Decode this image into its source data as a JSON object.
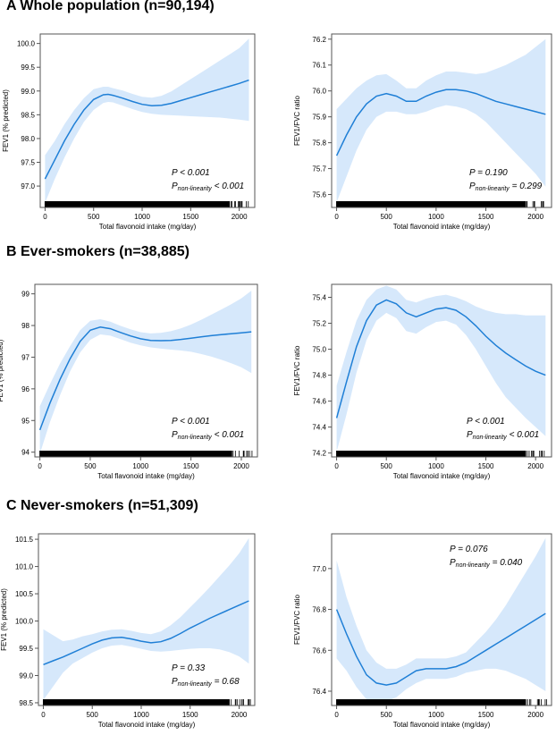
{
  "sections": [
    {
      "title": "A Whole population (n=90,194)"
    },
    {
      "title": "B Ever-smokers (n=38,885)"
    },
    {
      "title": "C Never-smokers (n=51,309)"
    }
  ],
  "colors": {
    "line": "#1f7fd6",
    "band": "#d6e8fb",
    "rug": "#000000"
  },
  "chart_data": [
    {
      "type": "line",
      "panel": "A-left",
      "title": "",
      "xlabel": "Total flavonoid intake (mg/day)",
      "ylabel": "FEV1 (% predicted)",
      "xlim": [
        -50,
        2160
      ],
      "ylim": [
        96.55,
        100.2
      ],
      "xticks": [
        0,
        500,
        1000,
        1500,
        2000
      ],
      "yticks": [
        97.0,
        97.5,
        98.0,
        98.5,
        99.0,
        99.5,
        100.0
      ],
      "ytick_decimals": 1,
      "x": [
        0,
        100,
        200,
        300,
        400,
        500,
        600,
        650,
        700,
        800,
        900,
        1000,
        1100,
        1200,
        1300,
        1400,
        1500,
        1600,
        1700,
        1800,
        1900,
        2000,
        2100
      ],
      "y": [
        97.15,
        97.55,
        97.95,
        98.3,
        98.6,
        98.82,
        98.92,
        98.93,
        98.91,
        98.85,
        98.78,
        98.72,
        98.69,
        98.7,
        98.74,
        98.8,
        98.86,
        98.92,
        98.98,
        99.04,
        99.1,
        99.16,
        99.23
      ],
      "lower": [
        96.65,
        97.15,
        97.6,
        98.0,
        98.35,
        98.6,
        98.75,
        98.77,
        98.76,
        98.69,
        98.62,
        98.56,
        98.52,
        98.5,
        98.49,
        98.48,
        98.47,
        98.46,
        98.45,
        98.44,
        98.42,
        98.4,
        98.37
      ],
      "upper": [
        97.65,
        97.95,
        98.3,
        98.6,
        98.85,
        99.04,
        99.09,
        99.09,
        99.06,
        99.01,
        98.94,
        98.88,
        98.86,
        98.9,
        98.99,
        99.12,
        99.25,
        99.38,
        99.51,
        99.64,
        99.77,
        99.9,
        100.1
      ],
      "stats": {
        "p": "P < 0.001",
        "p_nl_sub": "non-linearity",
        "p_nl_rest": " < 0.001"
      }
    },
    {
      "type": "line",
      "panel": "A-right",
      "title": "",
      "xlabel": "Total flavonoid intake (mg/day)",
      "ylabel": "FEV1/FVC ratio",
      "xlim": [
        -50,
        2160
      ],
      "ylim": [
        75.55,
        76.22
      ],
      "xticks": [
        0,
        500,
        1000,
        1500,
        2000
      ],
      "yticks": [
        75.6,
        75.7,
        75.8,
        75.9,
        76.0,
        76.1,
        76.2
      ],
      "ytick_decimals": 1,
      "x": [
        0,
        100,
        200,
        300,
        400,
        500,
        600,
        700,
        800,
        900,
        1000,
        1100,
        1200,
        1300,
        1400,
        1500,
        1600,
        1700,
        1800,
        1900,
        2000,
        2100
      ],
      "y": [
        75.75,
        75.83,
        75.9,
        75.95,
        75.98,
        75.99,
        75.98,
        75.96,
        75.96,
        75.98,
        75.995,
        76.005,
        76.005,
        76.0,
        75.99,
        75.975,
        75.96,
        75.95,
        75.94,
        75.93,
        75.92,
        75.91
      ],
      "lower": [
        75.57,
        75.67,
        75.77,
        75.85,
        75.9,
        75.92,
        75.92,
        75.91,
        75.91,
        75.92,
        75.935,
        75.945,
        75.94,
        75.93,
        75.91,
        75.88,
        75.84,
        75.8,
        75.76,
        75.72,
        75.68,
        75.63
      ],
      "upper": [
        75.93,
        75.97,
        76.01,
        76.04,
        76.06,
        76.065,
        76.04,
        76.01,
        76.01,
        76.04,
        76.06,
        76.075,
        76.075,
        76.07,
        76.065,
        76.07,
        76.085,
        76.1,
        76.12,
        76.14,
        76.17,
        76.2
      ],
      "stats": {
        "p": "P = 0.190",
        "p_nl_sub": "non-linearity",
        "p_nl_rest": " = 0.299"
      }
    },
    {
      "type": "line",
      "panel": "B-left",
      "title": "",
      "xlabel": "Total flavonoid intake (mg/day)",
      "ylabel": "FEV1 (% predicted)",
      "xlim": [
        -50,
        2160
      ],
      "ylim": [
        93.85,
        99.3
      ],
      "xticks": [
        0,
        500,
        1000,
        1500,
        2000
      ],
      "yticks": [
        94,
        95,
        96,
        97,
        98,
        99
      ],
      "ytick_decimals": 0,
      "x": [
        0,
        100,
        200,
        300,
        400,
        500,
        600,
        700,
        800,
        900,
        1000,
        1100,
        1200,
        1300,
        1400,
        1500,
        1600,
        1700,
        1800,
        1900,
        2000,
        2100
      ],
      "y": [
        94.7,
        95.55,
        96.3,
        96.95,
        97.5,
        97.85,
        97.95,
        97.9,
        97.78,
        97.67,
        97.58,
        97.53,
        97.52,
        97.53,
        97.56,
        97.6,
        97.64,
        97.68,
        97.71,
        97.74,
        97.77,
        97.8
      ],
      "lower": [
        93.95,
        94.95,
        95.8,
        96.55,
        97.15,
        97.55,
        97.72,
        97.68,
        97.57,
        97.46,
        97.37,
        97.31,
        97.27,
        97.24,
        97.21,
        97.17,
        97.1,
        97.02,
        96.92,
        96.81,
        96.68,
        96.5
      ],
      "upper": [
        95.45,
        96.15,
        96.8,
        97.35,
        97.85,
        98.15,
        98.2,
        98.12,
        97.99,
        97.88,
        97.79,
        97.75,
        97.77,
        97.82,
        97.91,
        98.03,
        98.18,
        98.34,
        98.5,
        98.67,
        98.86,
        99.1
      ],
      "stats": {
        "p": "P < 0.001",
        "p_nl_sub": "non-linearity",
        "p_nl_rest": " < 0.001"
      }
    },
    {
      "type": "line",
      "panel": "B-right",
      "title": "",
      "xlabel": "Total flavonoid intake (mg/day)",
      "ylabel": "FEV1/FVC ratio",
      "xlim": [
        -50,
        2160
      ],
      "ylim": [
        74.17,
        75.5
      ],
      "xticks": [
        0,
        500,
        1000,
        1500,
        2000
      ],
      "yticks": [
        74.2,
        74.4,
        74.6,
        74.8,
        75.0,
        75.2,
        75.4
      ],
      "ytick_decimals": 1,
      "x": [
        0,
        100,
        200,
        300,
        400,
        500,
        600,
        700,
        800,
        900,
        1000,
        1100,
        1200,
        1300,
        1400,
        1500,
        1600,
        1700,
        1800,
        1900,
        2000,
        2100
      ],
      "y": [
        74.47,
        74.75,
        75.02,
        75.22,
        75.34,
        75.38,
        75.35,
        75.28,
        75.25,
        75.28,
        75.31,
        75.32,
        75.3,
        75.25,
        75.18,
        75.1,
        75.03,
        74.97,
        74.92,
        74.87,
        74.83,
        74.8
      ],
      "lower": [
        74.21,
        74.5,
        74.82,
        75.07,
        75.22,
        75.28,
        75.24,
        75.14,
        75.12,
        75.17,
        75.21,
        75.22,
        75.19,
        75.11,
        75.0,
        74.87,
        74.74,
        74.63,
        74.55,
        74.47,
        74.4,
        74.33
      ],
      "upper": [
        74.72,
        74.98,
        75.22,
        75.38,
        75.46,
        75.49,
        75.46,
        75.38,
        75.36,
        75.39,
        75.41,
        75.42,
        75.4,
        75.37,
        75.33,
        75.3,
        75.28,
        75.27,
        75.27,
        75.26,
        75.26,
        75.26
      ],
      "stats": {
        "p": "P < 0.001",
        "p_nl_sub": "non-linearity",
        "p_nl_rest": " < 0.001"
      }
    },
    {
      "type": "line",
      "panel": "C-left",
      "title": "",
      "xlabel": "Total flavonoid intake (mg/day)",
      "ylabel": "FEV1 (% predicted)",
      "xlim": [
        -50,
        2160
      ],
      "ylim": [
        98.45,
        101.6
      ],
      "xticks": [
        0,
        500,
        1000,
        1500,
        2000
      ],
      "yticks": [
        98.5,
        99.0,
        99.5,
        100.0,
        100.5,
        101.0,
        101.5
      ],
      "ytick_decimals": 1,
      "x": [
        0,
        100,
        200,
        300,
        400,
        500,
        600,
        700,
        800,
        900,
        1000,
        1100,
        1200,
        1300,
        1400,
        1500,
        1600,
        1700,
        1800,
        1900,
        2000,
        2100
      ],
      "y": [
        99.2,
        99.27,
        99.34,
        99.42,
        99.5,
        99.58,
        99.65,
        99.69,
        99.7,
        99.67,
        99.63,
        99.6,
        99.62,
        99.68,
        99.77,
        99.87,
        99.96,
        100.05,
        100.13,
        100.21,
        100.29,
        100.37
      ],
      "lower": [
        98.55,
        98.8,
        99.05,
        99.22,
        99.32,
        99.42,
        99.5,
        99.55,
        99.56,
        99.53,
        99.49,
        99.45,
        99.44,
        99.45,
        99.47,
        99.49,
        99.5,
        99.5,
        99.48,
        99.43,
        99.35,
        99.22
      ],
      "upper": [
        99.85,
        99.74,
        99.63,
        99.66,
        99.72,
        99.76,
        99.81,
        99.84,
        99.85,
        99.82,
        99.78,
        99.76,
        99.81,
        99.92,
        100.07,
        100.25,
        100.43,
        100.62,
        100.82,
        101.02,
        101.24,
        101.52
      ],
      "stats": {
        "p": "P = 0.33",
        "p_nl_sub": "non-linearity",
        "p_nl_rest": " = 0.68"
      }
    },
    {
      "type": "line",
      "panel": "C-right",
      "title": "",
      "xlabel": "Total flavonoid intake (mg/day)",
      "ylabel": "FEV1/FVC ratio",
      "xlim": [
        -50,
        2160
      ],
      "ylim": [
        76.33,
        77.17
      ],
      "xticks": [
        0,
        500,
        1000,
        1500,
        2000
      ],
      "yticks": [
        76.4,
        76.6,
        76.8,
        77.0
      ],
      "ytick_decimals": 1,
      "x": [
        0,
        100,
        200,
        300,
        400,
        500,
        600,
        700,
        800,
        900,
        1000,
        1100,
        1200,
        1300,
        1400,
        1500,
        1600,
        1700,
        1800,
        1900,
        2000,
        2100
      ],
      "y": [
        76.8,
        76.68,
        76.57,
        76.48,
        76.44,
        76.43,
        76.44,
        76.47,
        76.5,
        76.51,
        76.51,
        76.51,
        76.52,
        76.54,
        76.57,
        76.6,
        76.63,
        76.66,
        76.69,
        76.72,
        76.75,
        76.78
      ],
      "lower": [
        76.56,
        76.5,
        76.42,
        76.36,
        76.34,
        76.35,
        76.37,
        76.41,
        76.44,
        76.46,
        76.46,
        76.46,
        76.47,
        76.49,
        76.5,
        76.51,
        76.51,
        76.5,
        76.48,
        76.46,
        76.43,
        76.4
      ],
      "upper": [
        77.04,
        76.86,
        76.72,
        76.6,
        76.54,
        76.51,
        76.51,
        76.53,
        76.56,
        76.56,
        76.56,
        76.56,
        76.57,
        76.59,
        76.64,
        76.69,
        76.75,
        76.82,
        76.9,
        76.98,
        77.06,
        77.15
      ],
      "stats": {
        "p": "P = 0.076",
        "p_nl_sub": "non-linearity",
        "p_nl_rest": " = 0.040"
      }
    }
  ]
}
